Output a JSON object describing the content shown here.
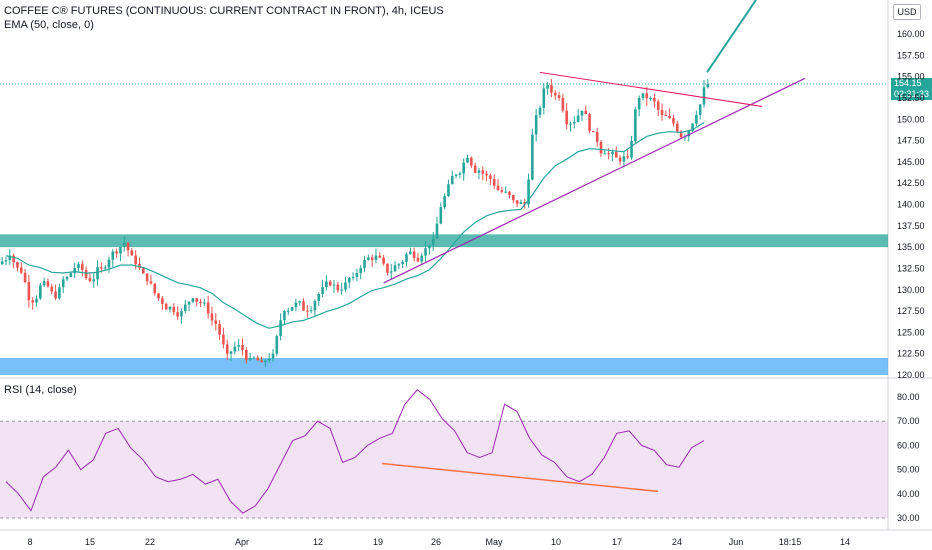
{
  "header": {
    "title": "COFFEE C® FUTURES (CONTINUOUS: CURRENT CONTRACT IN FRONT), 4h, ICEUS",
    "indicator": "EMA (50, close, 0)",
    "currency": "USD",
    "last_price": "154.15",
    "countdown": "02:31:33",
    "rsi_label": "RSI (14, close)"
  },
  "colors": {
    "up": "#26a69a",
    "down": "#ef5350",
    "ema": "#26a69a",
    "trend": "#9c27b0",
    "resistance": "#e91e63",
    "rsi": "#9c27b0",
    "rsi_div": "#ff7043",
    "zone_resistance": "#26a69a",
    "zone_support": "#2196f3",
    "arrow": "#26a69a"
  },
  "chart_data": [
    {
      "type": "candlestick",
      "title": "COFFEE C® FUTURES (CONTINUOUS: CURRENT CONTRACT IN FRONT), 4h, ICEUS",
      "ylim": [
        120,
        162.5
      ],
      "y_ticks": [
        "160.00",
        "157.50",
        "155.00",
        "152.50",
        "150.00",
        "147.50",
        "145.00",
        "142.50",
        "140.00",
        "137.50",
        "135.00",
        "132.50",
        "130.00",
        "127.50",
        "125.00",
        "122.50",
        "120.00"
      ],
      "x_ticks": [
        "8",
        "15",
        "22",
        "Apr",
        "12",
        "19",
        "26",
        "May",
        "10",
        "17",
        "24",
        "Jun",
        "18:15",
        "14"
      ],
      "close_series": [
        {
          "x": "Mar 5",
          "y": 134.0
        },
        {
          "x": "Mar 6",
          "y": 132.0
        },
        {
          "x": "Mar 7",
          "y": 128.5
        },
        {
          "x": "Mar 9",
          "y": 131.0
        },
        {
          "x": "Mar 10",
          "y": 129.0
        },
        {
          "x": "Mar 11",
          "y": 131.5
        },
        {
          "x": "Mar 12",
          "y": 133.0
        },
        {
          "x": "Mar 13",
          "y": 131.0
        },
        {
          "x": "Mar 15",
          "y": 132.5
        },
        {
          "x": "Mar 16",
          "y": 134.5
        },
        {
          "x": "Mar 17",
          "y": 135.5
        },
        {
          "x": "Mar 18",
          "y": 133.0
        },
        {
          "x": "Mar 19",
          "y": 131.0
        },
        {
          "x": "Mar 22",
          "y": 129.0
        },
        {
          "x": "Mar 23",
          "y": 128.0
        },
        {
          "x": "Mar 24",
          "y": 127.5
        },
        {
          "x": "Mar 25",
          "y": 129.0
        },
        {
          "x": "Mar 26",
          "y": 128.5
        },
        {
          "x": "Mar 28",
          "y": 126.0
        },
        {
          "x": "Mar 29",
          "y": 122.5
        },
        {
          "x": "Mar 30",
          "y": 123.5
        },
        {
          "x": "Apr 1",
          "y": 122.0
        },
        {
          "x": "Apr 2",
          "y": 121.5
        },
        {
          "x": "Apr 5",
          "y": 122.5
        },
        {
          "x": "Apr 6",
          "y": 127.5
        },
        {
          "x": "Apr 7",
          "y": 128.5
        },
        {
          "x": "Apr 8",
          "y": 127.5
        },
        {
          "x": "Apr 9",
          "y": 129.5
        },
        {
          "x": "Apr 12",
          "y": 130.5
        },
        {
          "x": "Apr 13",
          "y": 130.0
        },
        {
          "x": "Apr 14",
          "y": 131.5
        },
        {
          "x": "Apr 15",
          "y": 133.5
        },
        {
          "x": "Apr 16",
          "y": 134.0
        },
        {
          "x": "Apr 19",
          "y": 132.0
        },
        {
          "x": "Apr 20",
          "y": 133.0
        },
        {
          "x": "Apr 21",
          "y": 134.5
        },
        {
          "x": "Apr 22",
          "y": 134.0
        },
        {
          "x": "Apr 23",
          "y": 136.0
        },
        {
          "x": "Apr 26",
          "y": 141.0
        },
        {
          "x": "Apr 27",
          "y": 143.5
        },
        {
          "x": "Apr 28",
          "y": 145.5
        },
        {
          "x": "Apr 29",
          "y": 144.0
        },
        {
          "x": "Apr 30",
          "y": 143.0
        },
        {
          "x": "May 3",
          "y": 141.5
        },
        {
          "x": "May 4",
          "y": 140.5
        },
        {
          "x": "May 5",
          "y": 140.0
        },
        {
          "x": "May 6",
          "y": 150.5
        },
        {
          "x": "May 7",
          "y": 154.0
        },
        {
          "x": "May 10",
          "y": 152.5
        },
        {
          "x": "May 11",
          "y": 149.5
        },
        {
          "x": "May 12",
          "y": 151.0
        },
        {
          "x": "May 13",
          "y": 148.5
        },
        {
          "x": "May 14",
          "y": 146.0
        },
        {
          "x": "May 17",
          "y": 145.5
        },
        {
          "x": "May 18",
          "y": 145.5
        },
        {
          "x": "May 19",
          "y": 152.5
        },
        {
          "x": "May 20",
          "y": 152.5
        },
        {
          "x": "May 21",
          "y": 150.5
        },
        {
          "x": "May 24",
          "y": 149.5
        },
        {
          "x": "May 25",
          "y": 148.0
        },
        {
          "x": "May 26",
          "y": 150.5
        },
        {
          "x": "May 27",
          "y": 154.15
        }
      ],
      "ema_label": "EMA (50, close, 0)",
      "zones": [
        {
          "name": "resistance",
          "from": 135.0,
          "to": 136.5
        },
        {
          "name": "support",
          "from": 120.0,
          "to": 122.0
        }
      ],
      "last_price": 154.15
    },
    {
      "type": "line",
      "title": "RSI (14, close)",
      "ylim": [
        30,
        80
      ],
      "y_ticks": [
        "80.00",
        "70.00",
        "60.00",
        "50.00",
        "40.00",
        "30.00"
      ],
      "band": [
        30,
        70
      ],
      "values": [
        45,
        40,
        33,
        47,
        51,
        58,
        50,
        54,
        65,
        67,
        59,
        54,
        47,
        45,
        46,
        48,
        44,
        46,
        37,
        32,
        35,
        42,
        52,
        62,
        64,
        70,
        67,
        53,
        55,
        60,
        63,
        65,
        77,
        83,
        79,
        71,
        66,
        57,
        55,
        57,
        77,
        74,
        63,
        56,
        53,
        47,
        45,
        48,
        55,
        65,
        66,
        60,
        58,
        52,
        51,
        59,
        62
      ]
    }
  ]
}
